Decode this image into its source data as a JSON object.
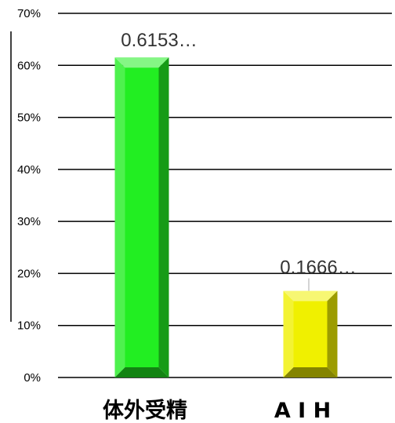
{
  "chart_data": {
    "type": "bar",
    "categories": [
      "体外受精",
      "A I H"
    ],
    "values": [
      0.6153,
      0.1666
    ],
    "data_labels": [
      "0.6153…",
      "0.1666…"
    ],
    "ylim": [
      0,
      0.7
    ],
    "yticks": [
      0,
      0.1,
      0.2,
      0.3,
      0.4,
      0.5,
      0.6,
      0.7
    ],
    "ytick_labels": [
      "0%",
      "10%",
      "20%",
      "30%",
      "40%",
      "50%",
      "60%",
      "70%"
    ],
    "grid": true,
    "legend": "none",
    "title": "",
    "xlabel": "",
    "ylabel": "",
    "colors": [
      "#22ee22",
      "#f0f000"
    ]
  }
}
